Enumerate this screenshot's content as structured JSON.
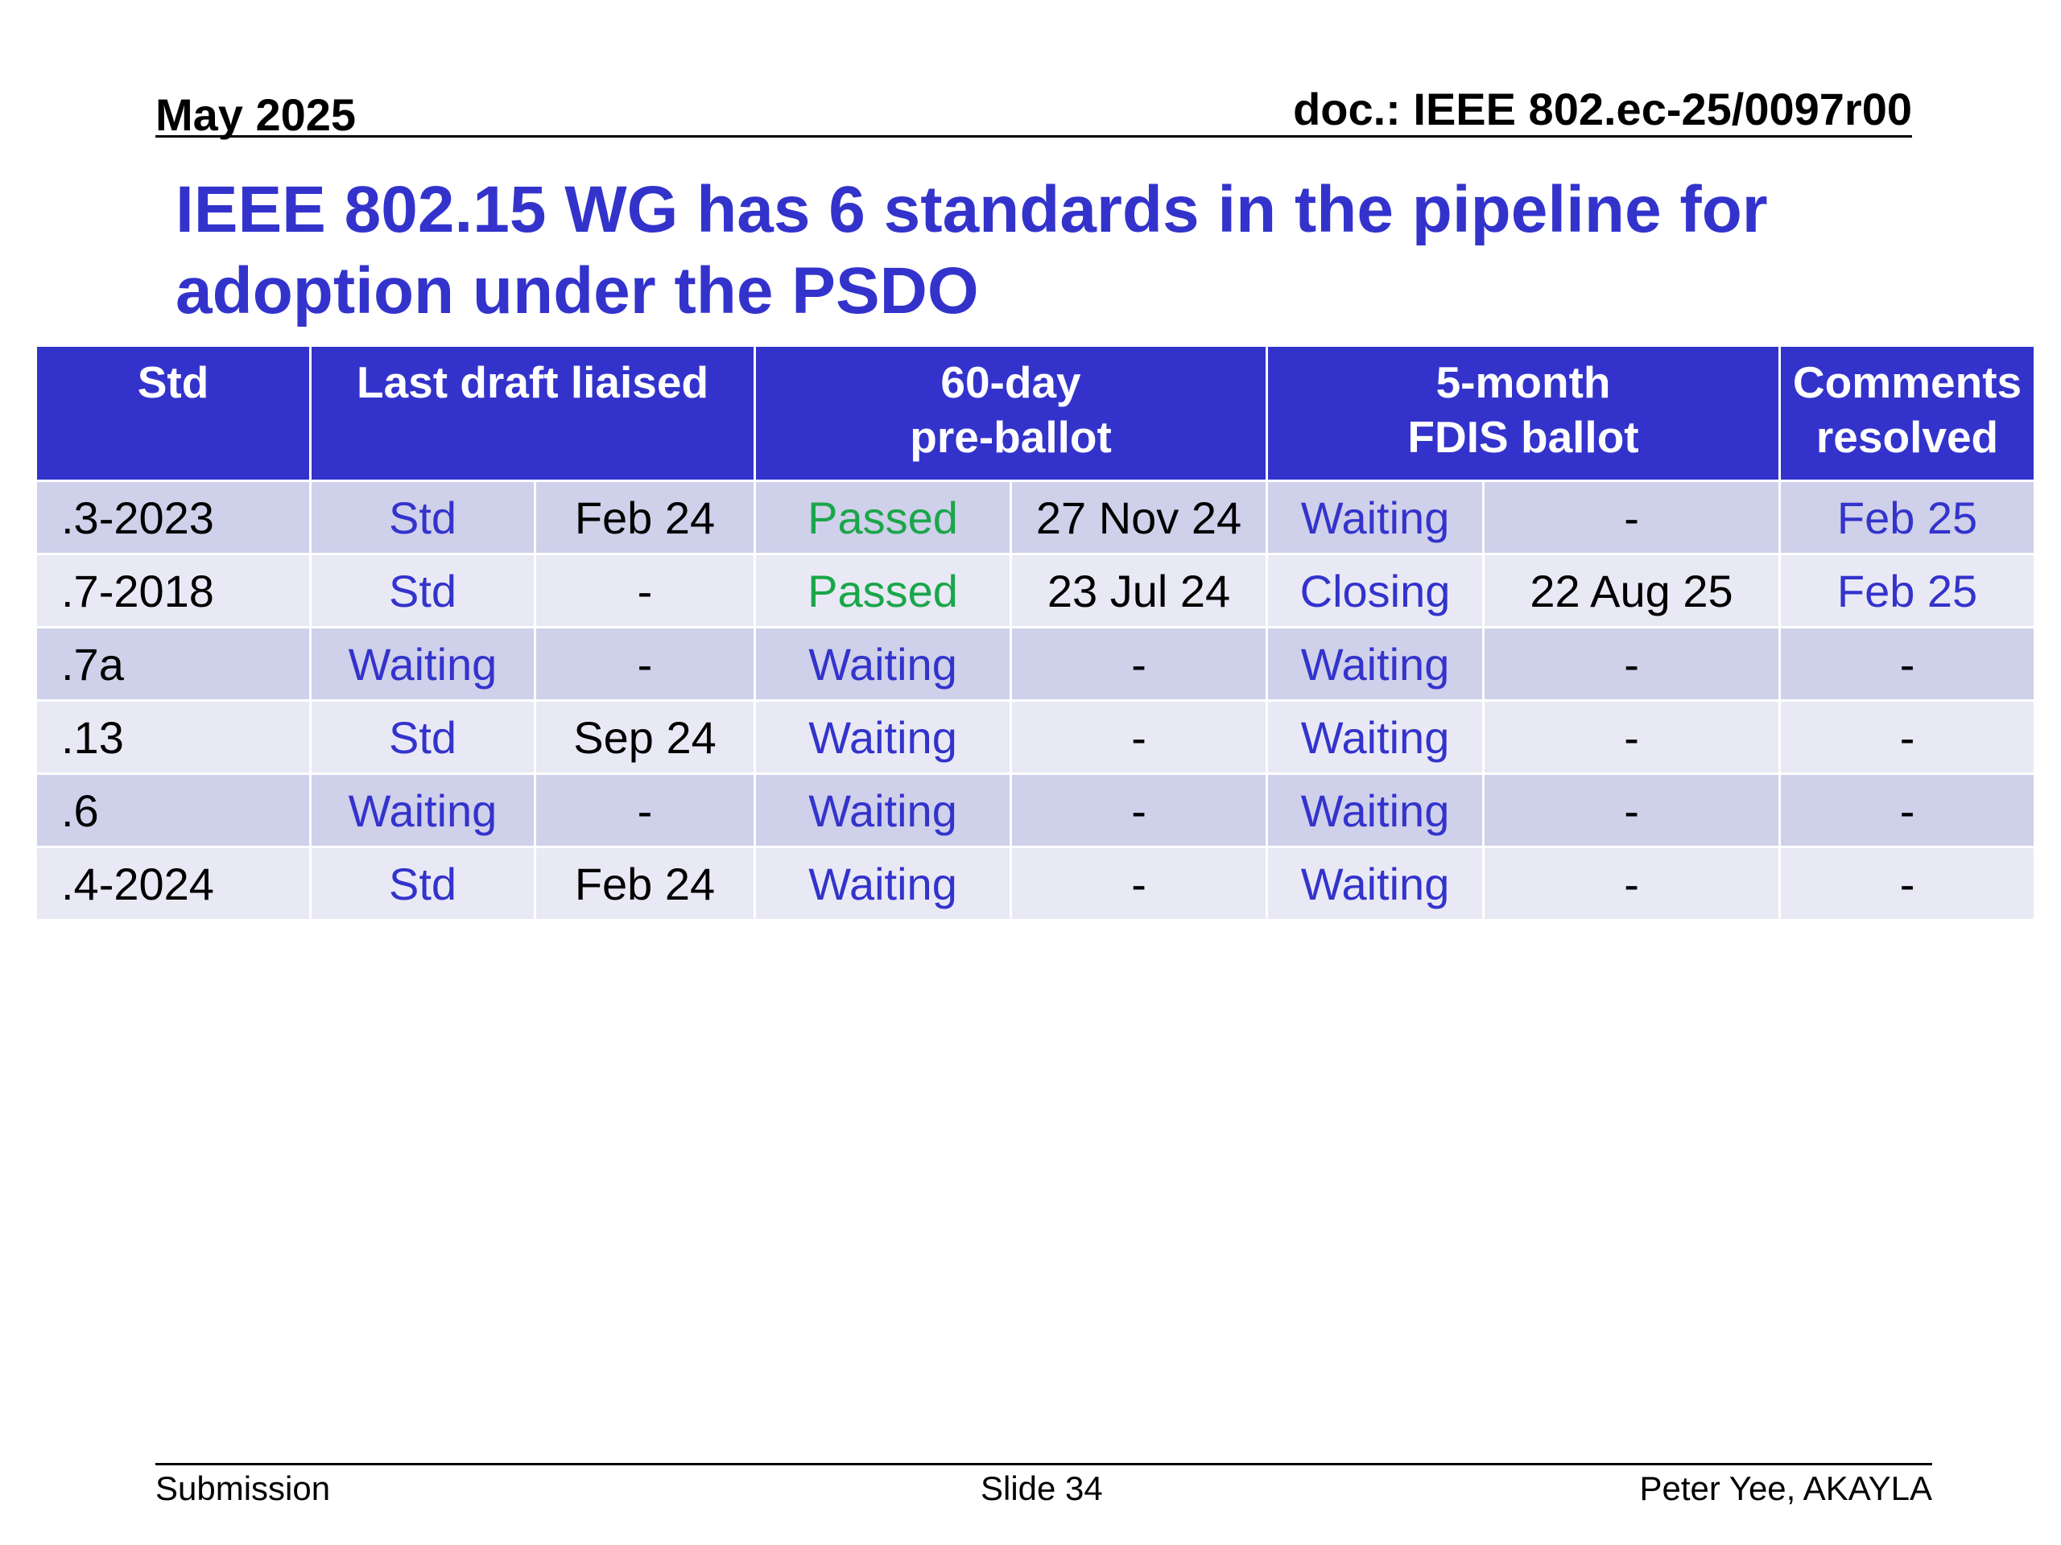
{
  "header": {
    "date": "May 2025",
    "doc_id": "doc.: IEEE 802.ec-25/0097r00"
  },
  "title": {
    "line1": "IEEE 802.15 WG has 6 standards in the pipeline for",
    "line2": "adoption under the PSDO"
  },
  "table": {
    "headers": [
      {
        "lines": [
          "Std"
        ]
      },
      {
        "lines": [
          "Last draft liaised"
        ]
      },
      {
        "lines": [
          "60-day",
          "pre-ballot"
        ]
      },
      {
        "lines": [
          "5-month",
          "FDIS ballot"
        ]
      },
      {
        "lines": [
          "Comments",
          "resolved"
        ]
      }
    ],
    "rows": [
      {
        "cells": [
          {
            "text": ".3-2023",
            "color": "black"
          },
          {
            "text": "Std",
            "color": "blue"
          },
          {
            "text": "Feb 24",
            "color": "black"
          },
          {
            "text": "Passed",
            "color": "green"
          },
          {
            "text": "27 Nov 24",
            "color": "black"
          },
          {
            "text": "Waiting",
            "color": "blue"
          },
          {
            "text": "-",
            "color": "black"
          },
          {
            "text": "Feb 25",
            "color": "blue"
          }
        ]
      },
      {
        "cells": [
          {
            "text": ".7-2018",
            "color": "black"
          },
          {
            "text": "Std",
            "color": "blue"
          },
          {
            "text": "-",
            "color": "black"
          },
          {
            "text": "Passed",
            "color": "green"
          },
          {
            "text": "23 Jul 24",
            "color": "black"
          },
          {
            "text": "Closing",
            "color": "blue"
          },
          {
            "text": "22 Aug 25",
            "color": "black"
          },
          {
            "text": "Feb 25",
            "color": "blue"
          }
        ]
      },
      {
        "cells": [
          {
            "text": ".7a",
            "color": "black"
          },
          {
            "text": "Waiting",
            "color": "blue"
          },
          {
            "text": "-",
            "color": "black"
          },
          {
            "text": "Waiting",
            "color": "blue"
          },
          {
            "text": "-",
            "color": "black"
          },
          {
            "text": "Waiting",
            "color": "blue"
          },
          {
            "text": "-",
            "color": "black"
          },
          {
            "text": "-",
            "color": "black"
          }
        ]
      },
      {
        "cells": [
          {
            "text": ".13",
            "color": "black"
          },
          {
            "text": "Std",
            "color": "blue"
          },
          {
            "text": "Sep 24",
            "color": "black"
          },
          {
            "text": "Waiting",
            "color": "blue"
          },
          {
            "text": "-",
            "color": "black"
          },
          {
            "text": "Waiting",
            "color": "blue"
          },
          {
            "text": "-",
            "color": "black"
          },
          {
            "text": "-",
            "color": "black"
          }
        ]
      },
      {
        "cells": [
          {
            "text": ".6",
            "color": "black"
          },
          {
            "text": "Waiting",
            "color": "blue"
          },
          {
            "text": "-",
            "color": "black"
          },
          {
            "text": "Waiting",
            "color": "blue"
          },
          {
            "text": "-",
            "color": "black"
          },
          {
            "text": "Waiting",
            "color": "blue"
          },
          {
            "text": "-",
            "color": "black"
          },
          {
            "text": "-",
            "color": "black"
          }
        ]
      },
      {
        "cells": [
          {
            "text": ".4-2024",
            "color": "black"
          },
          {
            "text": "Std",
            "color": "blue"
          },
          {
            "text": "Feb 24",
            "color": "black"
          },
          {
            "text": "Waiting",
            "color": "blue"
          },
          {
            "text": "-",
            "color": "black"
          },
          {
            "text": "Waiting",
            "color": "blue"
          },
          {
            "text": "-",
            "color": "black"
          },
          {
            "text": "-",
            "color": "black"
          }
        ]
      }
    ]
  },
  "footer": {
    "left": "Submission",
    "center": "Slide 34",
    "right": "Peter Yee, AKAYLA"
  },
  "colors": {
    "title_blue": "#3333cc",
    "header_fill": "#3333cc",
    "row_odd": "#cfd0ea",
    "row_even": "#e9e9f5",
    "passed_green": "#1aa64a"
  }
}
